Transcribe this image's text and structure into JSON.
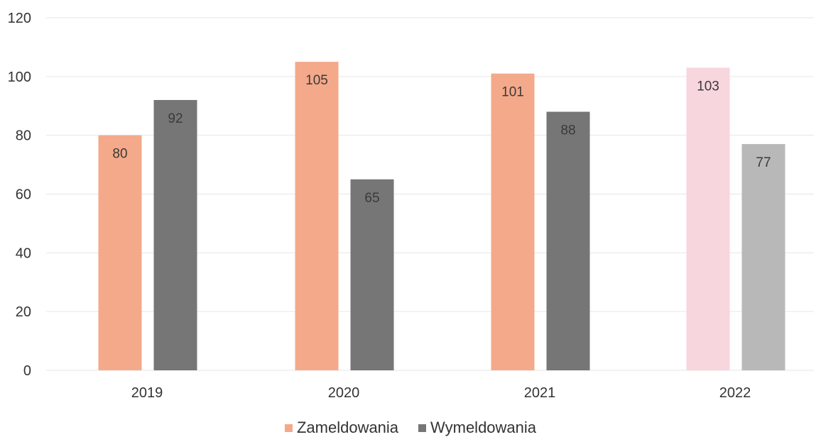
{
  "chart_data": {
    "type": "bar",
    "categories": [
      "2019",
      "2020",
      "2021",
      "2022"
    ],
    "series": [
      {
        "name": "Zameldowania",
        "values": [
          80,
          105,
          101,
          103
        ],
        "color": "#f4a98a"
      },
      {
        "name": "Wymeldowania",
        "values": [
          92,
          65,
          88,
          77
        ],
        "color": "#767676"
      }
    ],
    "point_colors": {
      "Zameldowania": [
        "#f4a98a",
        "#f4a98a",
        "#f4a98a",
        "#f8d6de"
      ],
      "Wymeldowania": [
        "#767676",
        "#767676",
        "#767676",
        "#b8b8b8"
      ]
    },
    "ylim": [
      0,
      120
    ],
    "yticks": [
      "0",
      "20",
      "40",
      "60",
      "80",
      "100",
      "120"
    ],
    "grid": true,
    "legend_position": "bottom",
    "data_labels": true
  }
}
